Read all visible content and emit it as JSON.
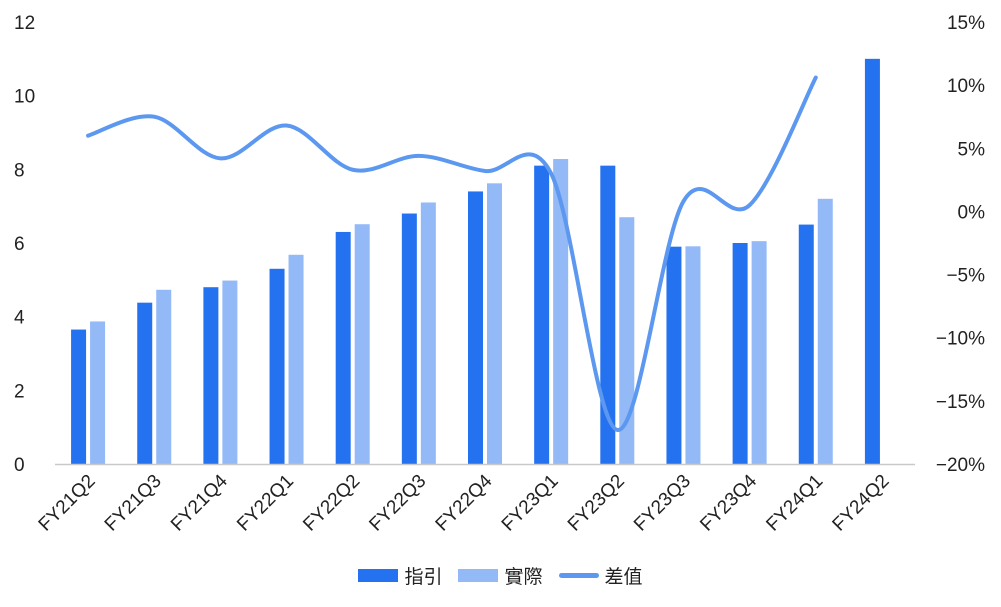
{
  "chart_data": {
    "type": "bar",
    "categories": [
      "FY21Q2",
      "FY21Q3",
      "FY21Q4",
      "FY22Q1",
      "FY22Q2",
      "FY22Q3",
      "FY22Q4",
      "FY23Q1",
      "FY23Q2",
      "FY23Q3",
      "FY23Q4",
      "FY24Q1",
      "FY24Q2"
    ],
    "series": [
      {
        "name": "指引",
        "type": "bar",
        "axis": "left",
        "color": "#2472f0",
        "values": [
          3.65,
          4.38,
          4.8,
          5.3,
          6.3,
          6.8,
          7.4,
          8.1,
          8.1,
          5.9,
          6.0,
          6.5,
          11.0
        ]
      },
      {
        "name": "實際",
        "type": "bar",
        "axis": "left",
        "color": "#93b9f7",
        "values": [
          3.87,
          4.73,
          4.98,
          5.68,
          6.51,
          7.1,
          7.62,
          8.28,
          6.7,
          5.91,
          6.05,
          7.2,
          null
        ]
      },
      {
        "name": "差值",
        "type": "line",
        "axis": "right",
        "color": "#5d98f0",
        "values": [
          6.0,
          7.5,
          4.2,
          6.8,
          3.3,
          4.4,
          3.2,
          3.0,
          -17.3,
          0.8,
          0.5,
          10.6,
          null
        ]
      }
    ],
    "y_left": {
      "min": 0,
      "max": 12,
      "ticks": [
        "0",
        "2",
        "4",
        "6",
        "8",
        "10",
        "12"
      ]
    },
    "y_right": {
      "min": -20,
      "max": 15,
      "ticks": [
        "−20%",
        "−15%",
        "−10%",
        "−5%",
        "0%",
        "5%",
        "10%",
        "15%"
      ]
    },
    "legend_position": "bottom",
    "grid": false
  }
}
